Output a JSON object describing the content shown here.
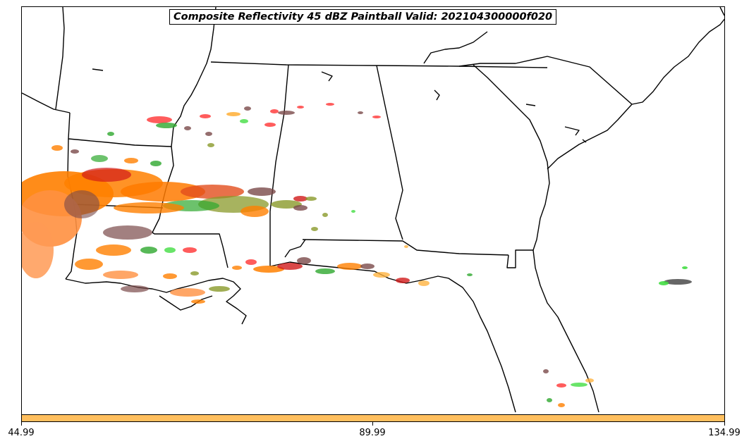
{
  "map": {
    "title": "Composite Reflectivity 45 dBZ Paintball Valid: 202104300000f020",
    "colorbar": {
      "color": "#ffbf5e",
      "ticks": [
        "44.99",
        "89.99",
        "134.99"
      ]
    },
    "paintball_colors": [
      "#ff8000",
      "#ff9040",
      "#d11a1a",
      "#ff3333",
      "#2ea82e",
      "#44dd44",
      "#8a9a2a",
      "#7a4a4a",
      "#555555",
      "#ffb340"
    ]
  }
}
